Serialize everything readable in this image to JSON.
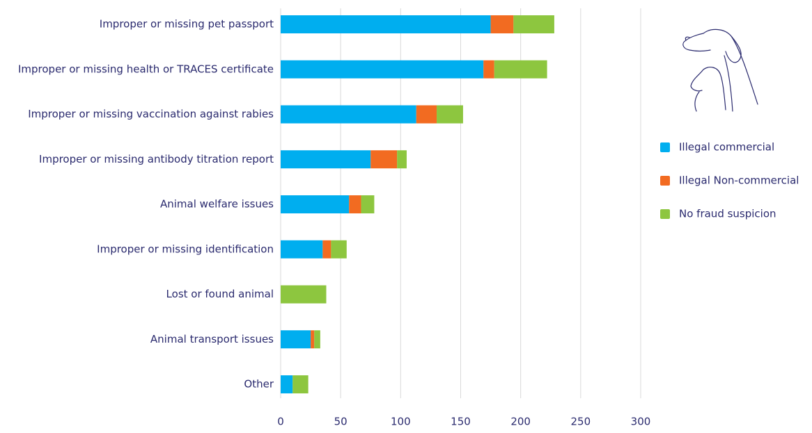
{
  "chart_data": {
    "type": "stacked-bar-horizontal",
    "categories": [
      "Improper or missing pet passport",
      "Improper or missing health or TRACES certificate",
      "Improper or missing vaccination against rabies",
      "Improper or missing antibody titration report",
      "Animal welfare issues",
      "Improper or missing identification",
      "Lost or found animal",
      "Animal transport issues",
      "Other"
    ],
    "series": [
      {
        "name": "Illegal commercial",
        "color": "#00aeef",
        "values": [
          175,
          169,
          113,
          75,
          57,
          35,
          0,
          25,
          10
        ]
      },
      {
        "name": "Illegal Non-commercial",
        "color": "#f26b21",
        "values": [
          19,
          9,
          17,
          22,
          10,
          7,
          0,
          3,
          0
        ]
      },
      {
        "name": "No fraud suspicion",
        "color": "#8dc63f",
        "values": [
          34,
          44,
          22,
          8,
          11,
          13,
          38,
          5,
          13
        ]
      }
    ],
    "xlim": [
      0,
      300
    ],
    "xticks": [
      0,
      50,
      100,
      150,
      200,
      250,
      300
    ],
    "grid": true,
    "legend": "right"
  }
}
